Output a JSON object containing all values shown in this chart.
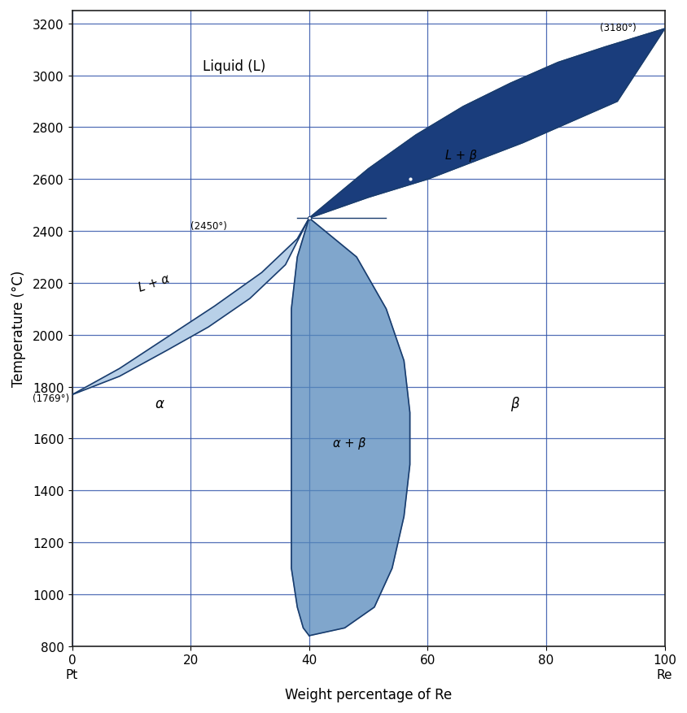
{
  "xlabel": "Weight percentage of Re",
  "ylabel": "Temperature (°C)",
  "xlim": [
    0,
    100
  ],
  "ylim": [
    800,
    3250
  ],
  "yticks": [
    800,
    1000,
    1200,
    1400,
    1600,
    1800,
    2000,
    2200,
    2400,
    2600,
    2800,
    3000,
    3200
  ],
  "xticks": [
    0,
    20,
    40,
    60,
    80,
    100
  ],
  "xticklabels": [
    "0\nPt",
    "20",
    "40",
    "60",
    "80",
    "100\nRe"
  ],
  "bg_color": "#ffffff",
  "grid_color": "#3355aa",
  "label_liquid": "Liquid (L)",
  "label_lalpha": "L + α",
  "label_lbeta": "L + β",
  "label_alpha": "α",
  "label_beta": "β",
  "label_alpha_beta": "α + β",
  "ann_1769": "(1769°)",
  "ann_2450": "(2450°)",
  "ann_3180": "(3180°)",
  "lalpha_liq_x": [
    0,
    8,
    16,
    24,
    32,
    38,
    40
  ],
  "lalpha_liq_y": [
    1769,
    1870,
    1990,
    2110,
    2240,
    2370,
    2450
  ],
  "lalpha_sol_x": [
    0,
    8,
    16,
    23,
    30,
    36,
    40
  ],
  "lalpha_sol_y": [
    1769,
    1840,
    1940,
    2030,
    2140,
    2270,
    2450
  ],
  "lbeta_liq_x": [
    40,
    50,
    58,
    66,
    74,
    82,
    90,
    100
  ],
  "lbeta_liq_y": [
    2450,
    2640,
    2770,
    2880,
    2970,
    3050,
    3110,
    3180
  ],
  "lbeta_sol_x": [
    40,
    50,
    60,
    68,
    76,
    84,
    92,
    100
  ],
  "lbeta_sol_y": [
    2450,
    2530,
    2600,
    2670,
    2740,
    2820,
    2900,
    3180
  ],
  "ab_left_x": [
    40,
    38,
    37,
    37,
    37,
    37,
    37,
    37,
    38,
    39,
    40
  ],
  "ab_left_y": [
    2450,
    2300,
    2100,
    1900,
    1700,
    1500,
    1300,
    1100,
    950,
    870,
    840
  ],
  "ab_right_x": [
    40,
    48,
    53,
    56,
    57,
    57,
    56,
    54,
    51,
    46,
    40
  ],
  "ab_right_y": [
    2450,
    2300,
    2100,
    1900,
    1700,
    1500,
    1300,
    1100,
    950,
    870,
    840
  ],
  "color_lalpha": "#b8d0e8",
  "color_lbeta": "#1a3d7c",
  "color_ab": "#5588bb",
  "color_line": "#1a3d6e"
}
